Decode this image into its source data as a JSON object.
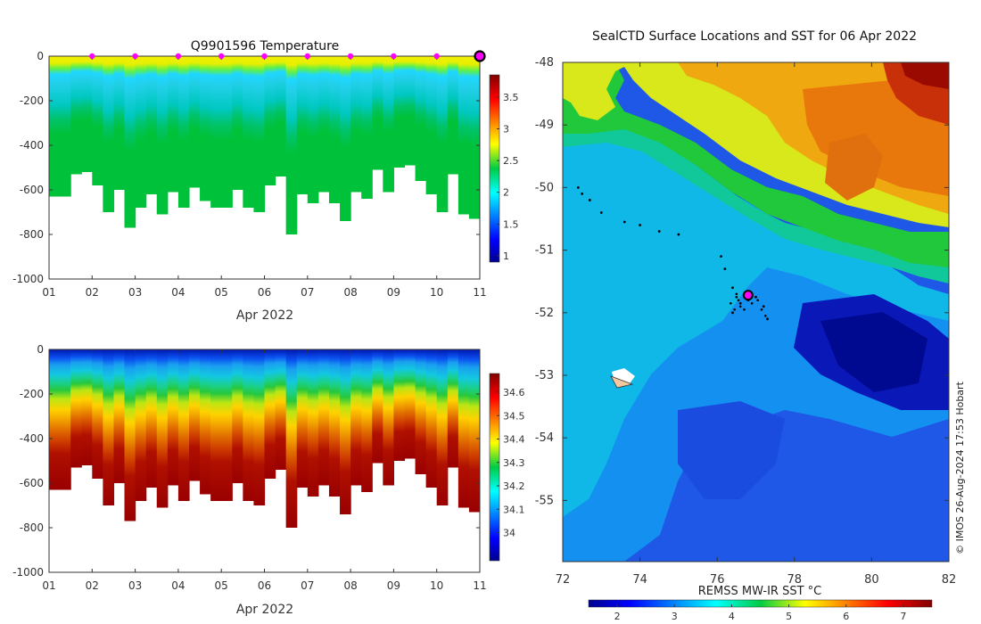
{
  "chart_data": [
    {
      "type": "heatmap",
      "title": "Q9901596  Temperature",
      "xlabel": "Apr 2022",
      "ylabel": "",
      "xlim": [
        1,
        11
      ],
      "ylim": [
        -1000,
        0
      ],
      "xticks": [
        1,
        2,
        3,
        4,
        5,
        6,
        7,
        8,
        9,
        10,
        11
      ],
      "xtick_labels": [
        "01",
        "02",
        "03",
        "04",
        "05",
        "06",
        "07",
        "08",
        "09",
        "10",
        "11"
      ],
      "yticks": [
        0,
        -200,
        -400,
        -600,
        -800,
        -1000
      ],
      "ytick_labels": [
        "0",
        "-200",
        "-400",
        "-600",
        "-800",
        "-1000"
      ],
      "colorbar": {
        "min": 0.9,
        "max": 3.85,
        "ticks": [
          1,
          1.5,
          2,
          2.5,
          3,
          3.5
        ],
        "tick_labels": [
          "1",
          "1.5",
          "2",
          "2.5",
          "3",
          "3.5"
        ],
        "colormap": "jet"
      },
      "surface_markers_x": [
        2,
        3,
        4,
        5,
        6,
        7,
        8,
        9,
        10
      ],
      "surface_marker_color": "#ff00ff",
      "last_marker_x": 11,
      "profile_dive_depths": [
        630,
        630,
        530,
        520,
        580,
        700,
        600,
        770,
        680,
        620,
        710,
        610,
        680,
        590,
        650,
        680,
        680,
        600,
        680,
        700,
        580,
        540,
        800,
        620,
        660,
        610,
        660,
        740,
        610,
        640,
        510,
        610,
        500,
        490,
        560,
        620,
        700,
        530,
        710,
        730
      ]
    },
    {
      "type": "heatmap",
      "title": "",
      "xlabel": "Apr 2022",
      "ylabel": "",
      "xlim": [
        1,
        11
      ],
      "ylim": [
        -1000,
        0
      ],
      "xticks": [
        1,
        2,
        3,
        4,
        5,
        6,
        7,
        8,
        9,
        10,
        11
      ],
      "xtick_labels": [
        "01",
        "02",
        "03",
        "04",
        "05",
        "06",
        "07",
        "08",
        "09",
        "10",
        "11"
      ],
      "yticks": [
        0,
        -200,
        -400,
        -600,
        -800,
        -1000
      ],
      "ytick_labels": [
        "0",
        "-200",
        "-400",
        "-600",
        "-800",
        "-1000"
      ],
      "colorbar": {
        "min": 33.88,
        "max": 34.68,
        "ticks": [
          34,
          34.1,
          34.2,
          34.3,
          34.4,
          34.5,
          34.6
        ],
        "tick_labels": [
          "34",
          "34.1",
          "34.2",
          "34.3",
          "34.4",
          "34.5",
          "34.6"
        ],
        "colormap": "jet"
      }
    },
    {
      "type": "heatmap",
      "title": "SealCTD Surface Locations and SST for 06 Apr 2022",
      "xlabel": "",
      "ylabel": "",
      "xlim": [
        72,
        82
      ],
      "ylim": [
        -56,
        -48
      ],
      "xticks": [
        72,
        74,
        76,
        78,
        80,
        82
      ],
      "xtick_labels": [
        "72",
        "74",
        "76",
        "78",
        "80",
        "82"
      ],
      "yticks": [
        -48,
        -49,
        -50,
        -51,
        -52,
        -53,
        -54,
        -55
      ],
      "ytick_labels": [
        "-48",
        "-49",
        "-50",
        "-51",
        "-52",
        "-53",
        "-54",
        "-55"
      ],
      "colorbar": {
        "label": "REMSS MW-IR SST °C",
        "min": 1.5,
        "max": 7.5,
        "ticks": [
          2,
          3,
          4,
          5,
          6,
          7
        ],
        "tick_labels": [
          "2",
          "3",
          "4",
          "5",
          "6",
          "7"
        ],
        "colormap": "jet"
      },
      "track": [
        [
          72.4,
          -50.0
        ],
        [
          72.5,
          -50.1
        ],
        [
          72.7,
          -50.2
        ],
        [
          73.0,
          -50.4
        ],
        [
          73.6,
          -50.55
        ],
        [
          74.0,
          -50.6
        ],
        [
          74.5,
          -50.7
        ],
        [
          75.0,
          -50.75
        ],
        [
          76.1,
          -51.1
        ],
        [
          76.2,
          -51.3
        ],
        [
          76.4,
          -51.6
        ],
        [
          76.5,
          -51.75
        ],
        [
          76.6,
          -51.85
        ],
        [
          76.8,
          -51.8
        ],
        [
          77.0,
          -51.75
        ],
        [
          77.2,
          -51.9
        ],
        [
          77.3,
          -52.1
        ],
        [
          76.4,
          -52.0
        ]
      ],
      "current_position": [
        76.8,
        -51.72
      ],
      "current_position_color": "#ff00ff",
      "island_location": [
        73.5,
        -53.1
      ],
      "credit": "© IMOS 26-Aug-2024 17:53 Hobart"
    }
  ]
}
